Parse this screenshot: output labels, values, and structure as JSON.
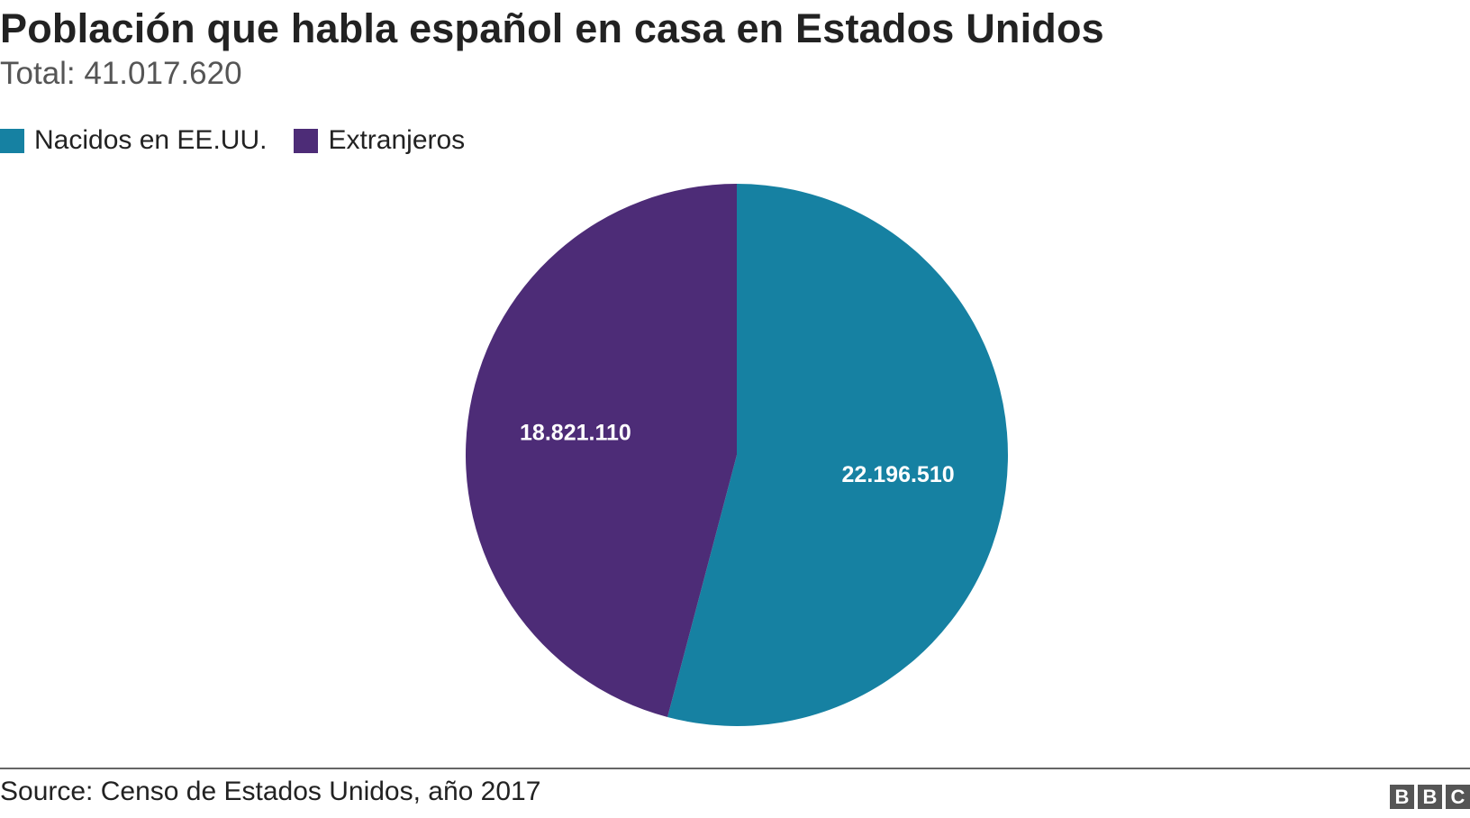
{
  "header": {
    "title": "Población que habla español en casa en Estados Unidos",
    "subtitle": "Total: 41.017.620"
  },
  "chart_data": {
    "type": "pie",
    "title": "Población que habla español en casa en Estados Unidos",
    "subtitle": "Total: 41.017.620",
    "legend": "top-left",
    "slices": [
      {
        "name": "Nacidos en EE.UU.",
        "value": 22196510,
        "label": "22.196.510",
        "color": "#1681a2"
      },
      {
        "name": "Extranjeros",
        "value": 18821110,
        "label": "18.821.110",
        "color": "#4d2c77"
      }
    ]
  },
  "footer": {
    "source": "Source: Censo de Estados Unidos, año 2017",
    "logo": [
      "B",
      "B",
      "C"
    ]
  }
}
